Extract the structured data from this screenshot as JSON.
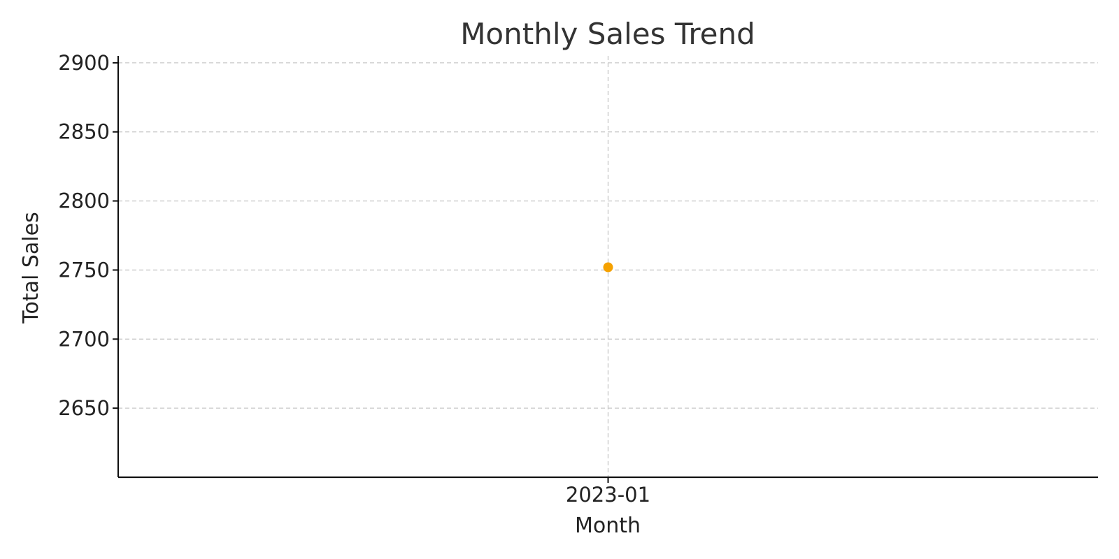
{
  "chart_data": {
    "type": "line",
    "title": "Monthly Sales Trend",
    "xlabel": "Month",
    "ylabel": "Total Sales",
    "categories": [
      "2023-01"
    ],
    "series": [
      {
        "values": [
          2752
        ]
      }
    ],
    "yticks": [
      2650,
      2700,
      2750,
      2800,
      2850,
      2900
    ],
    "ylim": [
      2600,
      2905
    ],
    "grid": true,
    "colors": {
      "point": "#f5a100"
    }
  }
}
